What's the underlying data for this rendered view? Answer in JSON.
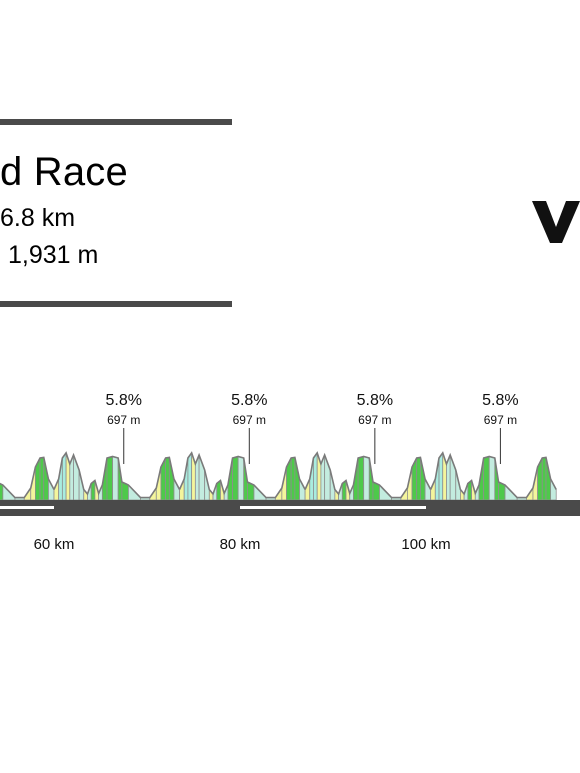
{
  "header": {
    "title": "d Race",
    "distance": "6.8 km",
    "elevation": "1,931 m"
  },
  "logo": {
    "icon": "brand-logo-icon",
    "color": "#111111"
  },
  "chart_data": {
    "type": "area",
    "x_unit": "km",
    "xticks": [
      {
        "km": 60,
        "label": "60 km"
      },
      {
        "km": 80,
        "label": "80 km"
      },
      {
        "km": 100,
        "label": "100 km"
      }
    ],
    "summits": [
      {
        "km": 67.5,
        "gradient": "5.8%",
        "altitude": "697 m"
      },
      {
        "km": 81.0,
        "gradient": "5.8%",
        "altitude": "697 m"
      },
      {
        "km": 94.5,
        "gradient": "5.8%",
        "altitude": "697 m"
      },
      {
        "km": 108.0,
        "gradient": "5.8%",
        "altitude": "697 m"
      }
    ],
    "lap_length_km": 13.5,
    "lap_profile": [
      {
        "dkm": 0.0,
        "elev": 575,
        "color": "#c3ecdf"
      },
      {
        "dkm": 0.5,
        "elev": 610,
        "color": "#f4f59c"
      },
      {
        "dkm": 0.9,
        "elev": 680,
        "color": "#a9ecdf"
      },
      {
        "dkm": 1.3,
        "elev": 697,
        "color": "#a9ecdf"
      },
      {
        "dkm": 1.7,
        "elev": 660,
        "color": "#f4f59c"
      },
      {
        "dkm": 2.1,
        "elev": 690,
        "color": "#c3ecdf"
      },
      {
        "dkm": 2.7,
        "elev": 640,
        "color": "#c3ecdf"
      },
      {
        "dkm": 3.2,
        "elev": 575,
        "color": "#c3ecdf"
      },
      {
        "dkm": 3.6,
        "elev": 560,
        "color": "#f4f59c"
      },
      {
        "dkm": 4.0,
        "elev": 595,
        "color": "#c3ecdf"
      },
      {
        "dkm": 4.4,
        "elev": 605,
        "color": "#4ec94a"
      },
      {
        "dkm": 4.8,
        "elev": 562,
        "color": "#f4f59c"
      },
      {
        "dkm": 5.2,
        "elev": 590,
        "color": "#c3ecdf"
      },
      {
        "dkm": 5.7,
        "elev": 680,
        "color": "#4ec94a"
      },
      {
        "dkm": 6.3,
        "elev": 685,
        "color": "#4ec94a"
      },
      {
        "dkm": 6.9,
        "elev": 680,
        "color": "#c3ecdf"
      },
      {
        "dkm": 7.3,
        "elev": 600,
        "color": "#4ec94a"
      },
      {
        "dkm": 8.0,
        "elev": 590,
        "color": "#4ec94a"
      },
      {
        "dkm": 9.3,
        "elev": 548,
        "color": "#c3ecdf"
      },
      {
        "dkm": 10.3,
        "elev": 548,
        "color": "#c3ecdf"
      },
      {
        "dkm": 11.0,
        "elev": 580,
        "color": "#f4f59c"
      },
      {
        "dkm": 11.5,
        "elev": 650,
        "color": "#f4f59c"
      },
      {
        "dkm": 12.0,
        "elev": 680,
        "color": "#4ec94a"
      },
      {
        "dkm": 12.4,
        "elev": 682,
        "color": "#4ec94a"
      },
      {
        "dkm": 12.9,
        "elev": 610,
        "color": "#4ec94a"
      },
      {
        "dkm": 13.5,
        "elev": 575,
        "color": "#c3ecdf"
      }
    ],
    "lap_start_km": 46.5,
    "lap_count": 5,
    "elev_range": [
      540,
      700
    ]
  }
}
